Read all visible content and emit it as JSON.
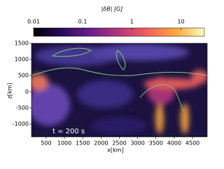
{
  "chart_data": {
    "type": "heatmap",
    "colorbar": {
      "label": "|δB|   [G]",
      "log": true,
      "lim": [
        0.01,
        30
      ],
      "ticks": [
        0.01,
        0.1,
        1,
        10
      ],
      "colormap": [
        "#000004",
        "#2a0b5e",
        "#6a1f8e",
        "#b5367a",
        "#f0605d",
        "#fca63c",
        "#fcfdbf"
      ]
    },
    "xlabel": "x[km]",
    "ylabel": "z[km]",
    "xlim": [
      100,
      4900
    ],
    "ylim": [
      -1400,
      1500
    ],
    "xticks": [
      500,
      1000,
      1500,
      2000,
      2500,
      3000,
      3500,
      4000,
      4500
    ],
    "yticks": [
      -1000,
      -500,
      0,
      500,
      1000,
      1500
    ],
    "annotation": "t = 200 s"
  }
}
